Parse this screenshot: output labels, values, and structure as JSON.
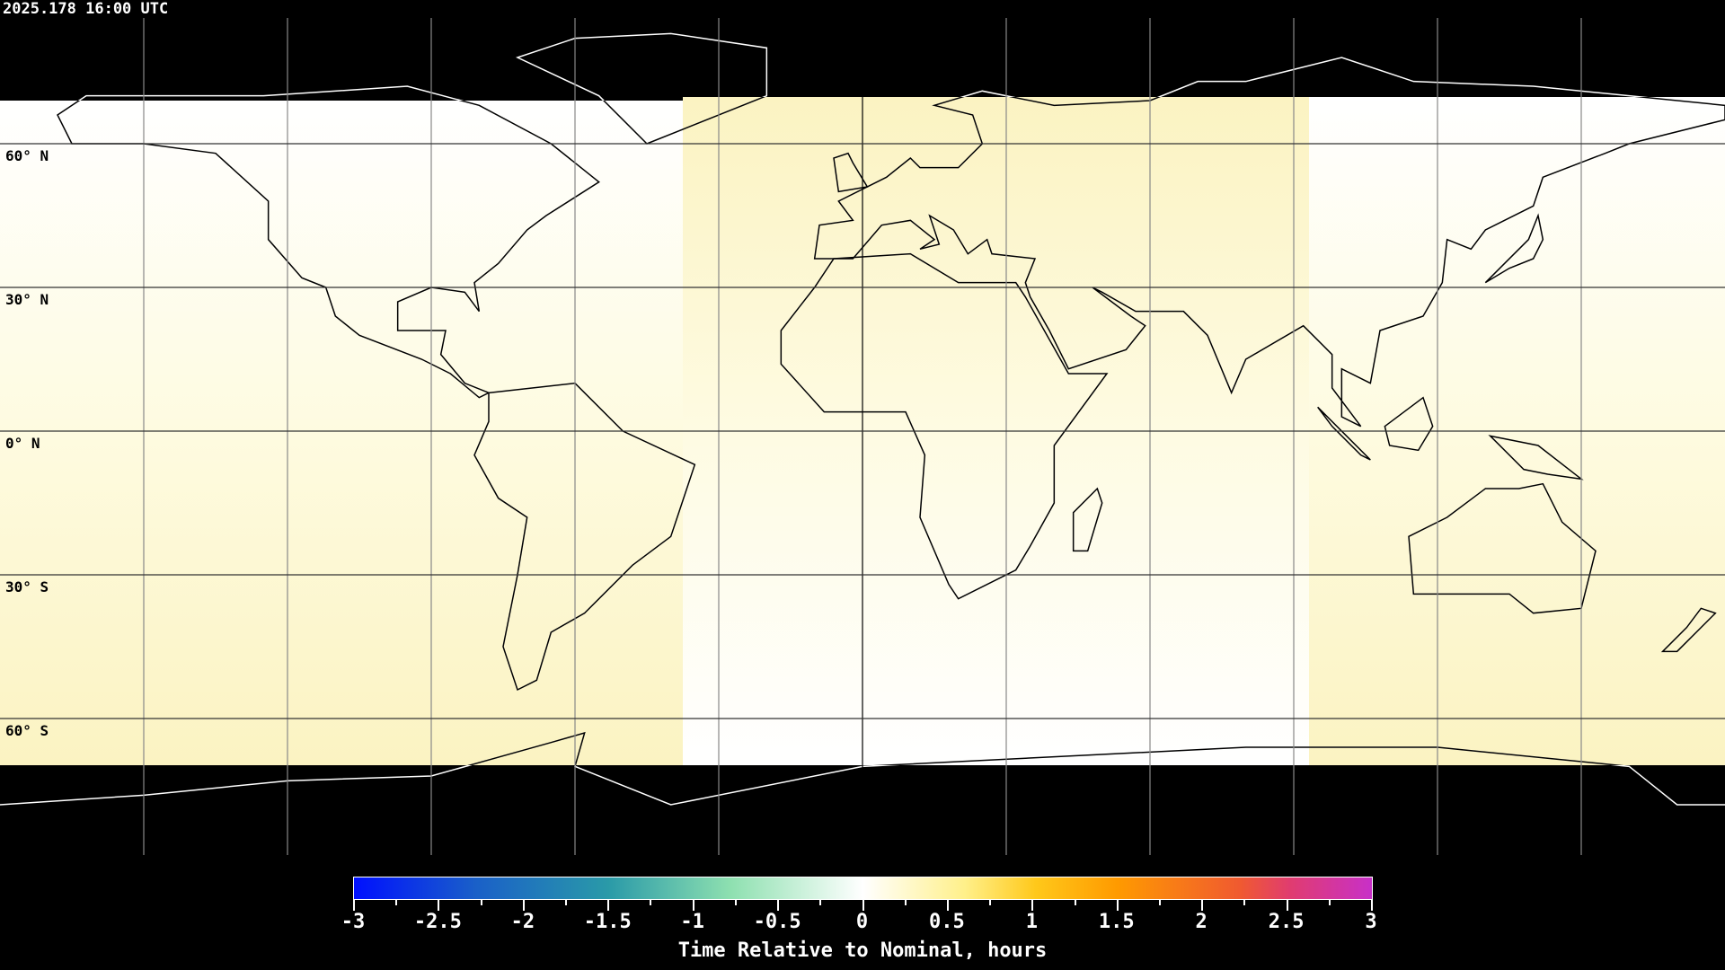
{
  "timestamp": "2025.178 16:00 UTC",
  "lat_labels": [
    "60° N",
    "30° N",
    "0° N",
    "30° S",
    "60° S"
  ],
  "colorbar": {
    "title": "Time Relative to Nominal, hours",
    "range": [
      -3,
      3
    ],
    "ticks": [
      "-3",
      "-2.5",
      "-2",
      "-1.5",
      "-1",
      "-0.5",
      "0",
      "0.5",
      "1",
      "1.5",
      "2",
      "2.5",
      "3"
    ],
    "colors": [
      "#0010ff",
      "#2a9aa8",
      "#8ee0b0",
      "#ffffff",
      "#fff08a",
      "#ffc81a",
      "#ff9a00",
      "#f05a30",
      "#c830c8"
    ]
  },
  "coverage_colors": {
    "no_data": "#000000",
    "near_zero": "#ffffff",
    "slight_positive": "#fdf6c4"
  }
}
